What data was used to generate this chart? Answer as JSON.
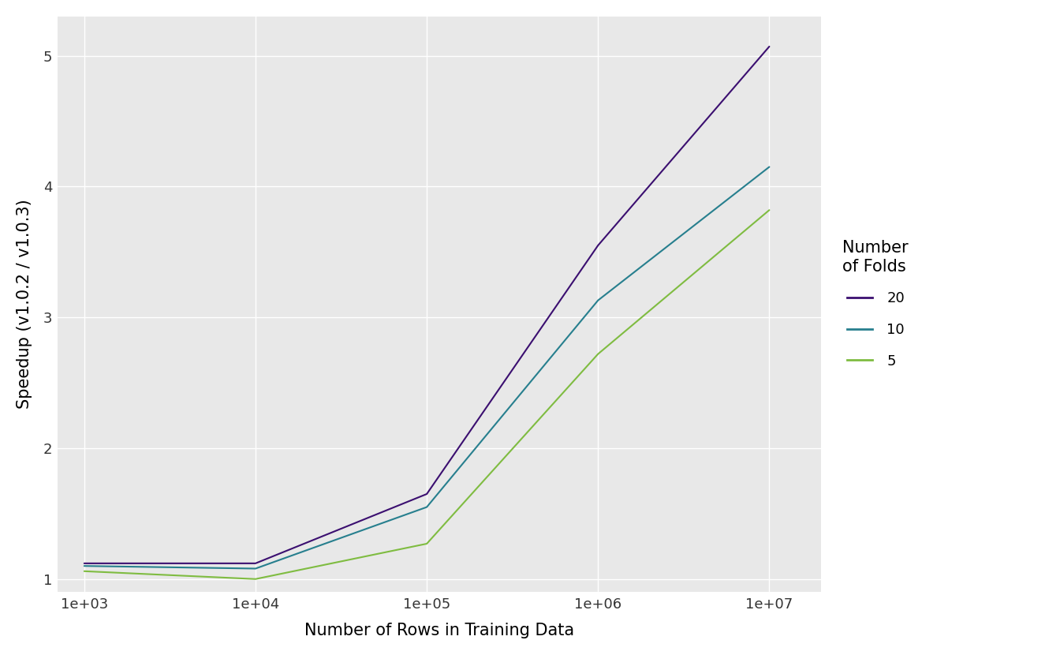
{
  "title": "",
  "xlabel": "Number of Rows in Training Data",
  "ylabel": "Speedup (v1.0.2 / v1.0.3)",
  "background_color": "#E8E8E8",
  "grid_color": "#FFFFFF",
  "panel_border_color": "#FFFFFF",
  "x_values": [
    1000,
    10000,
    100000,
    1000000,
    10000000
  ],
  "series": [
    {
      "label": "20",
      "color": "#3B0F70",
      "y_values": [
        1.12,
        1.12,
        1.65,
        3.55,
        5.07
      ]
    },
    {
      "label": "10",
      "color": "#277F8E",
      "y_values": [
        1.1,
        1.08,
        1.55,
        3.13,
        4.15
      ]
    },
    {
      "label": "5",
      "color": "#7FBC41",
      "y_values": [
        1.06,
        1.0,
        1.27,
        2.72,
        3.82
      ]
    }
  ],
  "ylim": [
    0.9,
    5.3
  ],
  "yticks": [
    1,
    2,
    3,
    4,
    5
  ],
  "xlim_low": 700,
  "xlim_high": 20000000,
  "legend_title": "Number\nof Folds",
  "line_width": 1.5,
  "axis_text_size": 13,
  "label_text_size": 15,
  "tick_label_color": "#333333"
}
